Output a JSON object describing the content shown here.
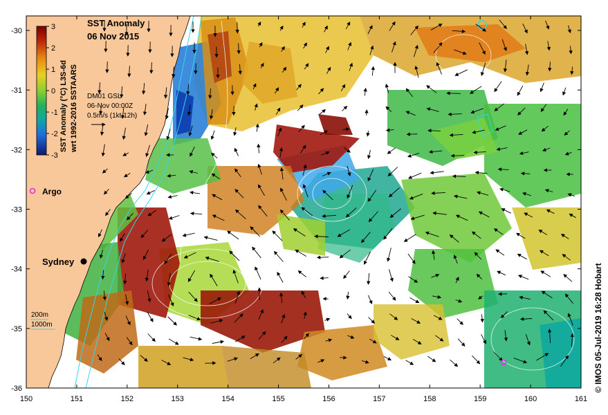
{
  "title": "SST Anomaly",
  "date": "06 Nov 2015",
  "colorbar": {
    "label_line1": "SST Anomaly (°C) L3S-6d",
    "label_line2": "wrt 1992-2016 SSTAARS",
    "ticks": [
      "3",
      "2",
      "1",
      "0",
      "-1",
      "-2",
      "-3"
    ]
  },
  "currents": {
    "source": "DM01 GSL",
    "time": "06-Nov 00:00Z",
    "scale": "0.5m/s (1kt 12h)"
  },
  "markers": {
    "argo": "Argo",
    "sydney": "Sydney"
  },
  "depth_legend": {
    "line1": "200m",
    "line2": "1000m"
  },
  "credit": "© IMOS 05-Jul-2019 16:28 Hobart",
  "axes": {
    "x_ticks": [
      "150",
      "151",
      "152",
      "153",
      "154",
      "155",
      "156",
      "157",
      "158",
      "159",
      "160",
      "161"
    ],
    "y_ticks": [
      "-30",
      "-31",
      "-32",
      "-33",
      "-34",
      "-35",
      "-36"
    ]
  },
  "colors": {
    "land": "#f8c89a",
    "warm": "#9a1a0a",
    "orange": "#d87a10",
    "yellow": "#c9d820",
    "green": "#48c040",
    "teal": "#10a890",
    "blue": "#2060d0",
    "cyan": "#30d8e8"
  }
}
